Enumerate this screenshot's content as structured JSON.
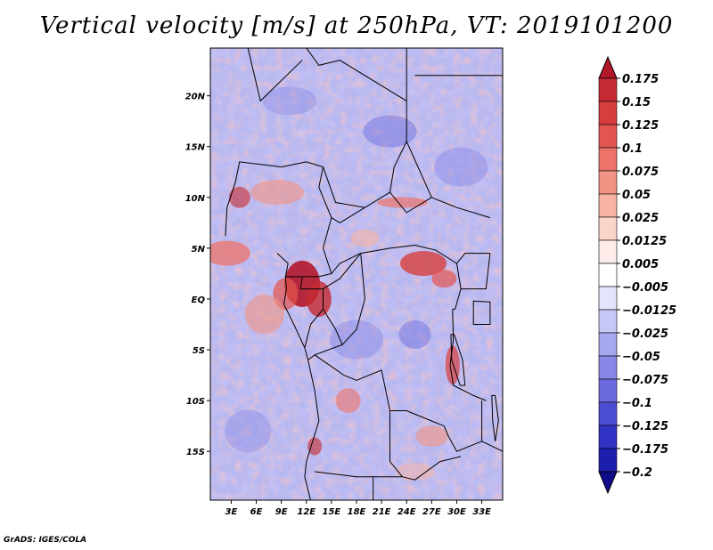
{
  "chart_data": {
    "type": "heatmap",
    "title": "Vertical velocity [m/s] at 250hPa, VT: 2019101200",
    "variable": "Vertical velocity",
    "units": "m/s",
    "level": "250hPa",
    "valid_time": "2019101200",
    "x_ticks": [
      {
        "lon": 3,
        "label": "3E"
      },
      {
        "lon": 6,
        "label": "6E"
      },
      {
        "lon": 9,
        "label": "9E"
      },
      {
        "lon": 12,
        "label": "12E"
      },
      {
        "lon": 15,
        "label": "15E"
      },
      {
        "lon": 18,
        "label": "18E"
      },
      {
        "lon": 21,
        "label": "21E"
      },
      {
        "lon": 24,
        "label": "24E"
      },
      {
        "lon": 27,
        "label": "27E"
      },
      {
        "lon": 30,
        "label": "30E"
      },
      {
        "lon": 33,
        "label": "33E"
      }
    ],
    "y_ticks": [
      {
        "lat": 20,
        "label": "20N"
      },
      {
        "lat": 15,
        "label": "15N"
      },
      {
        "lat": 10,
        "label": "10N"
      },
      {
        "lat": 5,
        "label": "5N"
      },
      {
        "lat": 0,
        "label": "EQ"
      },
      {
        "lat": -5,
        "label": "5S"
      },
      {
        "lat": -10,
        "label": "10S"
      },
      {
        "lat": -15,
        "label": "15S"
      }
    ],
    "xlim": [
      0.5,
      35.5
    ],
    "ylim": [
      -19.8,
      24.7
    ],
    "colorbar": {
      "levels": [
        "0.175",
        "0.15",
        "0.125",
        "0.1",
        "0.075",
        "0.05",
        "0.025",
        "0.0125",
        "0.005",
        "-0.005",
        "-0.0125",
        "-0.025",
        "-0.05",
        "-0.075",
        "-0.1",
        "-0.125",
        "-0.175",
        "-0.2"
      ],
      "colors": [
        "#b2182b",
        "#c52a32",
        "#d63e3e",
        "#e25550",
        "#ec7369",
        "#f29483",
        "#f7b4a5",
        "#fbd4c8",
        "#fdecea",
        "#ffffff",
        "#e4e4fb",
        "#c7c7f5",
        "#a8a8ef",
        "#8888e6",
        "#6a6ade",
        "#4d4dd3",
        "#3232c4",
        "#1e1eae",
        "#100c8c"
      ]
    },
    "notable_features": [
      {
        "region": "Central Africa near 10-14E, 0-3N",
        "sign": "positive (ascent)",
        "max_color": "#b2182b"
      },
      {
        "region": "Central Africa near 24-28E, 2-5N",
        "sign": "positive (ascent)"
      },
      {
        "region": "Gulf of Guinea coast 0-4E, 4-6N",
        "sign": "positive (ascent)"
      }
    ]
  },
  "credit": "GrADS: IGES/COLA"
}
